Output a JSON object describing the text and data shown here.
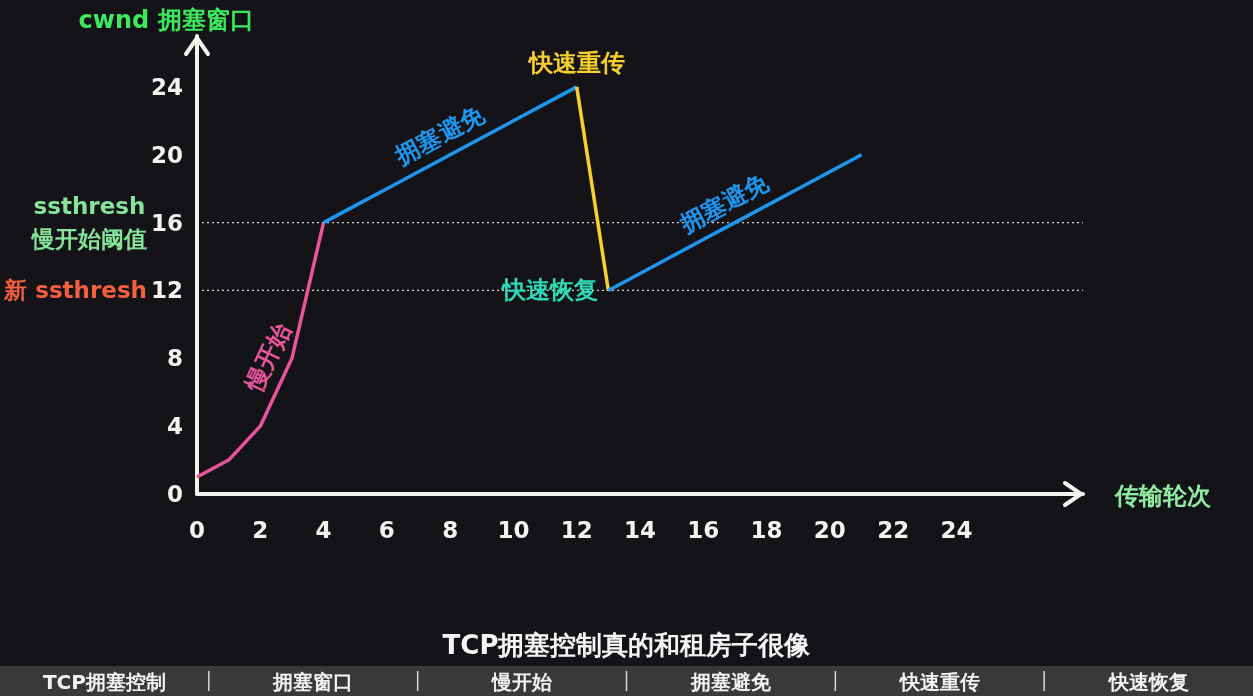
{
  "chart_data": {
    "type": "line",
    "xlabel": "传输轮次",
    "ylabel": "cwnd 拥塞窗口",
    "xlim": [
      0,
      28
    ],
    "ylim": [
      0,
      27
    ],
    "xticks": [
      0,
      2,
      4,
      6,
      8,
      10,
      12,
      14,
      16,
      18,
      20,
      22,
      24
    ],
    "yticks": [
      0,
      4,
      8,
      12,
      16,
      20,
      24
    ],
    "series": [
      {
        "name": "慢开始",
        "color": "#e8559a",
        "x": [
          0,
          1,
          2,
          3,
          4
        ],
        "values": [
          1,
          2,
          4,
          8,
          16
        ]
      },
      {
        "name": "拥塞避免",
        "color": "#1e96f0",
        "x": [
          4,
          5,
          6,
          7,
          8,
          9,
          10,
          11,
          12
        ],
        "values": [
          16,
          17,
          18,
          19,
          20,
          21,
          22,
          23,
          24
        ]
      },
      {
        "color": "#f5d030",
        "x": [
          12,
          13
        ],
        "values": [
          24,
          12
        ]
      },
      {
        "name": "拥塞避免",
        "color": "#1e96f0",
        "x": [
          13,
          14,
          15,
          16,
          17,
          18,
          19,
          20,
          21
        ],
        "values": [
          12,
          13,
          14,
          15,
          16,
          17,
          18,
          19,
          20
        ]
      }
    ],
    "ref_lines": [
      {
        "axis": "y",
        "value": 16,
        "label": "ssthresh\n慢开始阈值",
        "color": "#cfcfcf",
        "line_style": "dotted"
      },
      {
        "axis": "y",
        "value": 12,
        "label": "新 ssthresh",
        "color": "#cfcfcf",
        "line_style": "dotted"
      }
    ],
    "annotations": [
      {
        "text": "快速重传",
        "x": 12,
        "y": 24
      },
      {
        "text": "快速恢复",
        "x": 13,
        "y": 12
      },
      "TCP拥塞控制真的和租房子很像",
      "TCP拥塞控制",
      "拥塞窗口",
      "慢开始",
      "拥塞避免",
      "快速重传",
      "快速恢复"
    ]
  }
}
